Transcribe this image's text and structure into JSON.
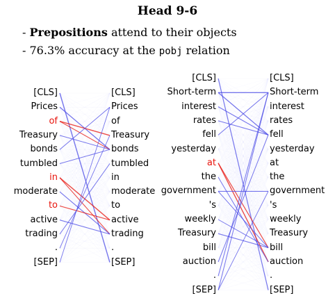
{
  "header": {
    "title": "Head 9-6",
    "bullets": [
      {
        "dash": "- ",
        "strong": "Prepositions",
        "rest": " attend to their objects"
      },
      {
        "dash": "- ",
        "prefix": "76.3% accuracy at the ",
        "code": "pobj",
        "suffix": " relation"
      }
    ]
  },
  "colors": {
    "blue": "#4a4ae6",
    "red": "#e8140c",
    "light_blue": "#d6d8fb"
  },
  "diagrams": [
    {
      "id": "left",
      "tokens": [
        "[CLS]",
        "Prices",
        "of",
        "Treasury",
        "bonds",
        "tumbled",
        "in",
        "moderate",
        "to",
        "active",
        "trading",
        ".",
        "[SEP]"
      ],
      "highlight": [
        2,
        6,
        8
      ],
      "strong_links": [
        {
          "from": 0,
          "to": 12,
          "color": "blue",
          "w": 1.4
        },
        {
          "from": 1,
          "to": 4,
          "color": "blue",
          "w": 1.3
        },
        {
          "from": 2,
          "to": 3,
          "color": "red",
          "w": 1.4
        },
        {
          "from": 2,
          "to": 4,
          "color": "red",
          "w": 1.1
        },
        {
          "from": 3,
          "to": 4,
          "color": "blue",
          "w": 1.0
        },
        {
          "from": 4,
          "to": 1,
          "color": "blue",
          "w": 1.0
        },
        {
          "from": 5,
          "to": 4,
          "color": "blue",
          "w": 1.0
        },
        {
          "from": 6,
          "to": 9,
          "color": "red",
          "w": 1.4
        },
        {
          "from": 6,
          "to": 10,
          "color": "red",
          "w": 1.1
        },
        {
          "from": 7,
          "to": 10,
          "color": "blue",
          "w": 1.1
        },
        {
          "from": 8,
          "to": 9,
          "color": "red",
          "w": 1.2
        },
        {
          "from": 9,
          "to": 10,
          "color": "blue",
          "w": 1.1
        },
        {
          "from": 10,
          "to": 5,
          "color": "blue",
          "w": 1.0
        },
        {
          "from": 11,
          "to": 3,
          "color": "blue",
          "w": 0.9
        },
        {
          "from": 12,
          "to": 1,
          "color": "blue",
          "w": 0.9
        }
      ]
    },
    {
      "id": "right",
      "tokens": [
        "[CLS]",
        "Short-term",
        "interest",
        "rates",
        "fell",
        "yesterday",
        "at",
        "the",
        "government",
        "'s",
        "weekly",
        "Treasury",
        "bill",
        "auction",
        ".",
        "[SEP]"
      ],
      "highlight": [
        6
      ],
      "strong_links": [
        {
          "from": 0,
          "to": 15,
          "color": "blue",
          "w": 1.2
        },
        {
          "from": 1,
          "to": 1,
          "color": "blue",
          "w": 1.4
        },
        {
          "from": 1,
          "to": 4,
          "color": "blue",
          "w": 1.3
        },
        {
          "from": 2,
          "to": 4,
          "color": "blue",
          "w": 1.1
        },
        {
          "from": 3,
          "to": 4,
          "color": "blue",
          "w": 1.1
        },
        {
          "from": 4,
          "to": 1,
          "color": "blue",
          "w": 1.0
        },
        {
          "from": 6,
          "to": 12,
          "color": "red",
          "w": 1.2
        },
        {
          "from": 6,
          "to": 13,
          "color": "red",
          "w": 1.4
        },
        {
          "from": 7,
          "to": 13,
          "color": "blue",
          "w": 1.0
        },
        {
          "from": 8,
          "to": 12,
          "color": "blue",
          "w": 1.0
        },
        {
          "from": 8,
          "to": 8,
          "color": "blue",
          "w": 1.1
        },
        {
          "from": 10,
          "to": 12,
          "color": "blue",
          "w": 1.0
        },
        {
          "from": 11,
          "to": 12,
          "color": "blue",
          "w": 1.1
        },
        {
          "from": 13,
          "to": 4,
          "color": "blue",
          "w": 1.0
        },
        {
          "from": 14,
          "to": 1,
          "color": "blue",
          "w": 1.0
        },
        {
          "from": 15,
          "to": 1,
          "color": "blue",
          "w": 1.0
        },
        {
          "from": 15,
          "to": 8,
          "color": "blue",
          "w": 0.9
        }
      ]
    }
  ]
}
